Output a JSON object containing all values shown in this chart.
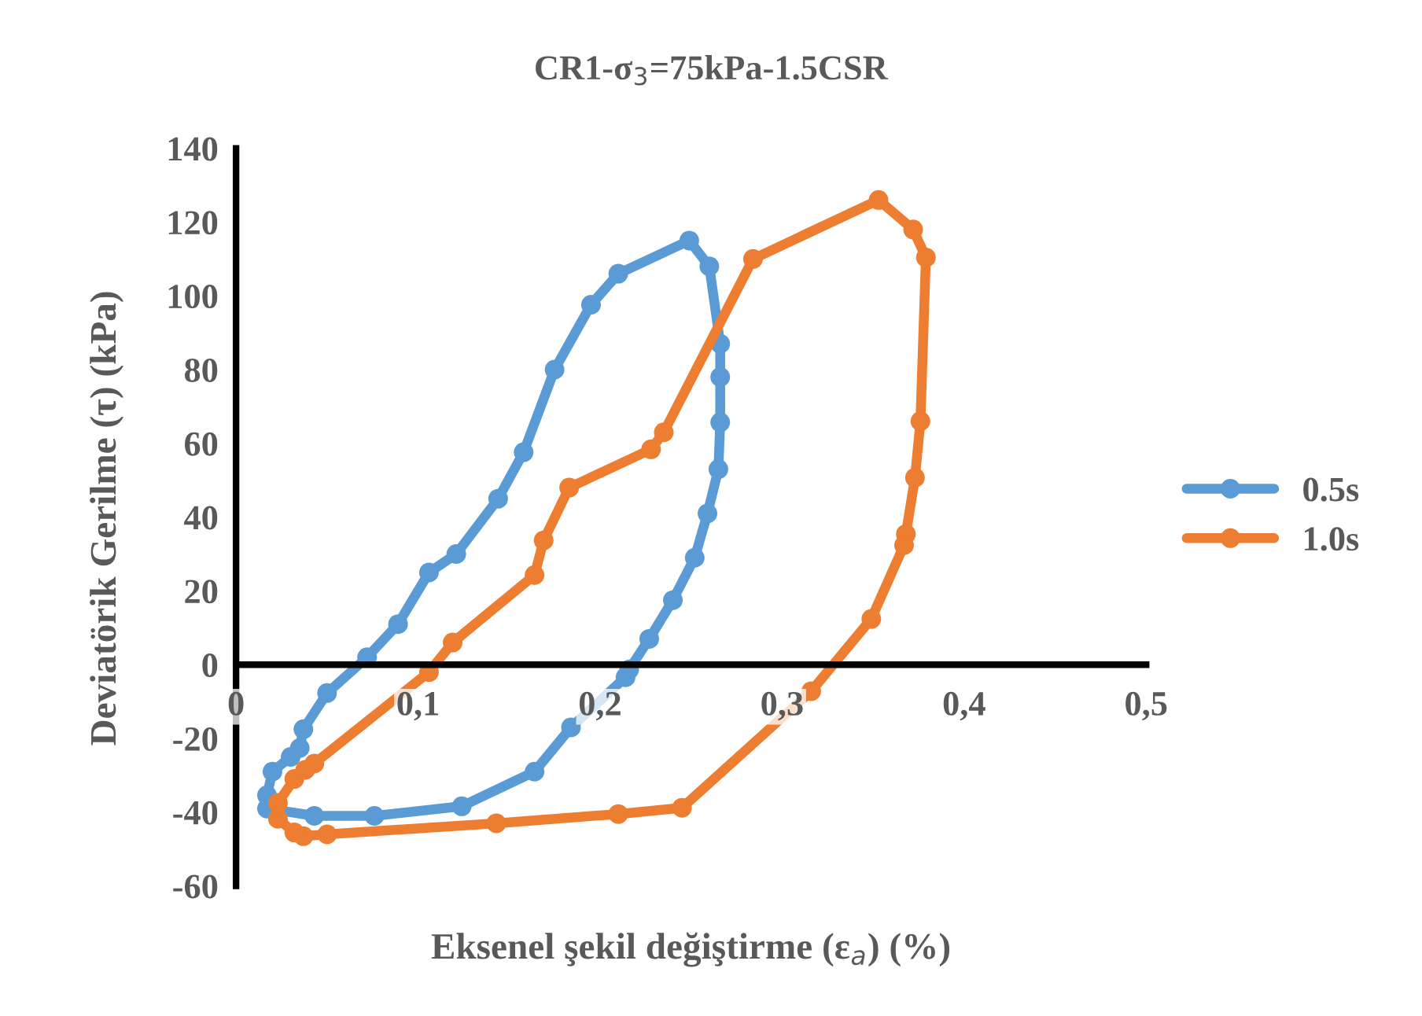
{
  "chart_data": {
    "type": "line",
    "title": "CR1-σ$_{3}$=75kPa-1.5CSR",
    "xlabel": "Eksenel şekil değiştirme (ε$_{a}$) (%)",
    "ylabel": "Deviatörik Gerilme (τ) (kPa)",
    "xlim": [
      0,
      0.5
    ],
    "ylim": [
      -60,
      140
    ],
    "xticks": [
      {
        "value": 0,
        "label": "0"
      },
      {
        "value": 0.1,
        "label": "0,1"
      },
      {
        "value": 0.2,
        "label": "0,2"
      },
      {
        "value": 0.3,
        "label": "0,3"
      },
      {
        "value": 0.4,
        "label": "0,4"
      },
      {
        "value": 0.5,
        "label": "0,5"
      }
    ],
    "yticks": [
      -60,
      -40,
      -20,
      0,
      20,
      40,
      60,
      80,
      100,
      120,
      140
    ],
    "grid": false,
    "legend": "right",
    "marker": "circle",
    "line_style": "solid",
    "series": [
      {
        "name": "0.5s",
        "color": "#5b9bd5",
        "x": [
          0.035,
          0.037,
          0.05,
          0.072,
          0.089,
          0.106,
          0.121,
          0.144,
          0.158,
          0.175,
          0.195,
          0.21,
          0.249,
          0.26,
          0.266,
          0.266,
          0.266,
          0.265,
          0.259,
          0.252,
          0.24,
          0.227,
          0.216,
          0.214,
          0.184,
          0.164,
          0.124,
          0.076,
          0.043,
          0.017,
          0.017,
          0.02,
          0.03
        ],
        "values": [
          -22.6,
          -17.5,
          -7.7,
          2,
          11,
          25,
          30,
          45,
          57.6,
          80,
          97.6,
          106,
          115,
          108,
          87,
          78,
          65.7,
          53,
          41,
          29,
          17.5,
          7,
          -1.3,
          -3.4,
          -17,
          -29,
          -38.4,
          -41,
          -41,
          -39,
          -35.4,
          -29,
          -25
        ]
      },
      {
        "name": "1.0s",
        "color": "#ed7d31",
        "x": [
          0.043,
          0.106,
          0.119,
          0.164,
          0.169,
          0.183,
          0.228,
          0.235,
          0.284,
          0.353,
          0.372,
          0.379,
          0.376,
          0.373,
          0.368,
          0.367,
          0.349,
          0.316,
          0.245,
          0.21,
          0.143,
          0.05,
          0.037,
          0.032,
          0.023,
          0.023,
          0.032,
          0.038
        ],
        "values": [
          -26.8,
          -2,
          6,
          24.3,
          33.7,
          48,
          58.4,
          63,
          110,
          126,
          118,
          110.4,
          66,
          50.7,
          35.4,
          32.4,
          12.4,
          -7.2,
          -38.8,
          -40.5,
          -43,
          -46,
          -46.5,
          -45.5,
          -41.8,
          -37.5,
          -31,
          -28.5
        ]
      }
    ]
  }
}
